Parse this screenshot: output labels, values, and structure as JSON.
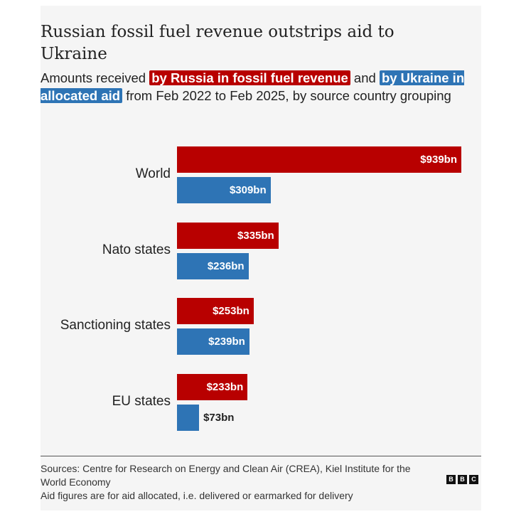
{
  "title": "Russian fossil fuel revenue outstrips aid to Ukraine",
  "subtitle": {
    "pre": "Amounts received ",
    "red": "by Russia in fossil fuel revenue",
    "mid": " and ",
    "blue": "by Ukraine in allocated aid",
    "post": " from Feb 2022 to Feb 2025, by source country grouping"
  },
  "colors": {
    "russia": "#b80000",
    "ukraine": "#2e74b5"
  },
  "chart_data": {
    "type": "bar",
    "orientation": "horizontal",
    "title": "Russian fossil fuel revenue outstrips aid to Ukraine",
    "categories": [
      "World",
      "Nato states",
      "Sanctioning states",
      "EU states"
    ],
    "series": [
      {
        "name": "by Russia in fossil fuel revenue",
        "values": [
          939,
          335,
          253,
          233
        ],
        "labels": [
          "$939bn",
          "$335bn",
          "$253bn",
          "$233bn"
        ]
      },
      {
        "name": "by Ukraine in allocated aid",
        "values": [
          309,
          236,
          239,
          73
        ],
        "labels": [
          "$309bn",
          "$236bn",
          "$239bn",
          "$73bn"
        ]
      }
    ],
    "units": "$bn",
    "xlim": [
      0,
      939
    ]
  },
  "footer": {
    "sources": "Sources: Centre for Research on Energy and Clean Air (CREA), Kiel Institute for the World Economy",
    "note": "Aid figures are for aid allocated, i.e. delivered or earmarked for delivery"
  },
  "logo": [
    "B",
    "B",
    "C"
  ]
}
